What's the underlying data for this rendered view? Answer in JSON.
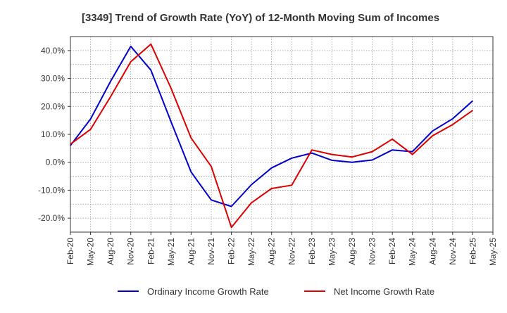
{
  "chart_data": {
    "type": "line",
    "title": "[3349]  Trend of Growth Rate (YoY) of 12-Month Moving Sum of Incomes",
    "xlabel": "",
    "ylabel": "",
    "x": [
      "Feb-20",
      "May-20",
      "Aug-20",
      "Nov-20",
      "Feb-21",
      "May-21",
      "Aug-21",
      "Nov-21",
      "Feb-22",
      "May-22",
      "Aug-22",
      "Nov-22",
      "Feb-23",
      "May-23",
      "Aug-23",
      "Nov-23",
      "Feb-24",
      "May-24",
      "Aug-24",
      "Nov-24",
      "Feb-25",
      "May-25"
    ],
    "y_ticks": [
      "-20.0%",
      "-10.0%",
      "0.0%",
      "10.0%",
      "20.0%",
      "30.0%",
      "40.0%"
    ],
    "y_tick_values": [
      -20,
      -10,
      0,
      10,
      20,
      30,
      40
    ],
    "ylim": [
      -25,
      45
    ],
    "grid": true,
    "legend_position": "bottom",
    "series": [
      {
        "name": "Ordinary Income Growth Rate",
        "color": "#0000cc",
        "values": [
          6.0,
          15.5,
          29.0,
          41.5,
          33.0,
          14.5,
          -3.5,
          -13.5,
          -15.8,
          -8.0,
          -2.0,
          1.5,
          3.3,
          0.7,
          0.0,
          0.8,
          4.4,
          3.8,
          11.2,
          15.6,
          22.0,
          null
        ]
      },
      {
        "name": "Net Income Growth Rate",
        "color": "#dd0000",
        "values": [
          6.5,
          11.8,
          23.5,
          36.0,
          42.3,
          26.5,
          8.7,
          -1.5,
          -23.3,
          -14.5,
          -9.4,
          -8.2,
          4.4,
          2.8,
          1.9,
          3.8,
          8.3,
          2.8,
          9.5,
          13.5,
          18.6,
          null
        ]
      }
    ]
  }
}
